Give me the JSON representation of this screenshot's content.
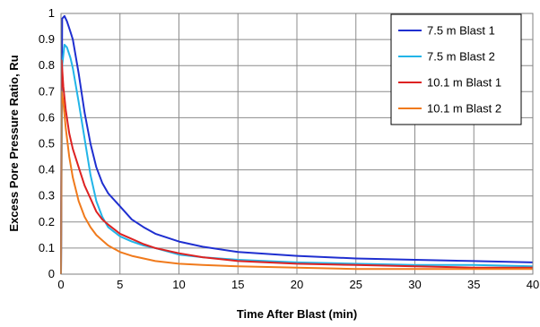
{
  "chart_data": {
    "type": "line",
    "title": "",
    "xlabel": "Time After Blast (min)",
    "ylabel": "Excess Pore Pressure Ratio, Ru",
    "xlim": [
      0,
      40
    ],
    "ylim": [
      0,
      1
    ],
    "x_ticks": [
      0,
      5,
      10,
      15,
      20,
      25,
      30,
      35,
      40
    ],
    "y_ticks": [
      0,
      0.1,
      0.2,
      0.3,
      0.4,
      0.5,
      0.6,
      0.7,
      0.8,
      0.9,
      1
    ],
    "x_tick_labels": [
      "0",
      "5",
      "10",
      "15",
      "20",
      "25",
      "30",
      "35",
      "40"
    ],
    "y_tick_labels": [
      "0",
      "0.1",
      "0.2",
      "0.3",
      "0.4",
      "0.5",
      "0.6",
      "0.7",
      "0.8",
      "0.9",
      "1"
    ],
    "grid": true,
    "legend_position": "top-right",
    "series": [
      {
        "name": "7.5 m Blast 1",
        "color": "#1f2fd0",
        "x": [
          0,
          0.1,
          0.3,
          0.5,
          0.8,
          1,
          1.5,
          2,
          2.5,
          3,
          3.5,
          4,
          5,
          6,
          7,
          8,
          10,
          12,
          15,
          20,
          25,
          30,
          35,
          40
        ],
        "y": [
          0,
          0.98,
          0.99,
          0.97,
          0.93,
          0.9,
          0.77,
          0.62,
          0.5,
          0.41,
          0.35,
          0.31,
          0.26,
          0.21,
          0.18,
          0.155,
          0.125,
          0.105,
          0.085,
          0.07,
          0.06,
          0.055,
          0.05,
          0.045
        ]
      },
      {
        "name": "7.5 m Blast 2",
        "color": "#22b5e8",
        "x": [
          0,
          0.1,
          0.3,
          0.5,
          0.8,
          1,
          1.5,
          2,
          2.5,
          3,
          3.5,
          4,
          5,
          6,
          7,
          8,
          10,
          12,
          15,
          20,
          25,
          30,
          35,
          40
        ],
        "y": [
          0,
          0.8,
          0.88,
          0.87,
          0.83,
          0.79,
          0.66,
          0.52,
          0.38,
          0.28,
          0.22,
          0.18,
          0.145,
          0.125,
          0.11,
          0.1,
          0.075,
          0.065,
          0.055,
          0.045,
          0.04,
          0.035,
          0.035,
          0.03
        ]
      },
      {
        "name": "10.1 m Blast 1",
        "color": "#dd2222",
        "x": [
          0,
          0.05,
          0.2,
          0.4,
          0.7,
          1,
          1.5,
          2,
          2.5,
          3,
          3.5,
          4,
          5,
          6,
          7,
          8,
          10,
          12,
          15,
          20,
          25,
          30,
          35,
          40
        ],
        "y": [
          0,
          0.82,
          0.72,
          0.63,
          0.54,
          0.48,
          0.41,
          0.34,
          0.29,
          0.24,
          0.21,
          0.19,
          0.155,
          0.135,
          0.115,
          0.1,
          0.08,
          0.065,
          0.05,
          0.04,
          0.035,
          0.03,
          0.025,
          0.025
        ]
      },
      {
        "name": "10.1 m Blast 2",
        "color": "#f07a1c",
        "x": [
          0,
          0.05,
          0.2,
          0.4,
          0.7,
          1,
          1.5,
          2,
          2.5,
          3,
          3.5,
          4,
          5,
          6,
          7,
          8,
          10,
          12,
          15,
          20,
          25,
          30,
          35,
          40
        ],
        "y": [
          0,
          0.7,
          0.66,
          0.56,
          0.45,
          0.37,
          0.28,
          0.22,
          0.18,
          0.15,
          0.13,
          0.11,
          0.085,
          0.07,
          0.06,
          0.05,
          0.04,
          0.035,
          0.03,
          0.025,
          0.02,
          0.02,
          0.02,
          0.02
        ]
      }
    ]
  }
}
